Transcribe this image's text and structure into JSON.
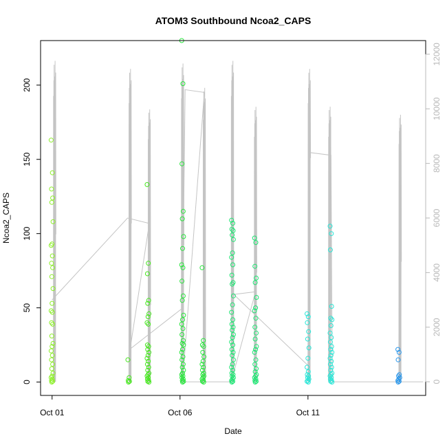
{
  "chart_data": {
    "type": "scatter",
    "title": "ATOM3 Southbound Ncoa2_CAPS",
    "xlabel": "Date",
    "ylabel": "Ncoa2_CAPS",
    "x_ticks": [
      {
        "label": "Oct 01",
        "day": 1
      },
      {
        "label": "Oct 06",
        "day": 6
      },
      {
        "label": "Oct 11",
        "day": 11
      }
    ],
    "x_range_days": [
      0.55,
      15.6
    ],
    "ylim": [
      -9,
      230
    ],
    "y_ticks": [
      0,
      50,
      100,
      150,
      200
    ],
    "y2lim": [
      -500,
      12500
    ],
    "y2_ticks": [
      0,
      2000,
      4000,
      6000,
      8000,
      10000,
      12000
    ],
    "colors": {
      "line": "#c4c4c4",
      "right_axis": "#b8b8b8"
    },
    "clusters": [
      {
        "day": 1.0,
        "color": "#8cf028",
        "values": [
          163,
          141,
          130,
          124,
          121,
          108,
          93,
          92,
          85,
          80,
          77,
          71,
          63,
          53,
          48,
          47,
          40,
          39,
          31,
          26,
          24,
          21,
          18,
          15,
          12,
          9,
          6,
          4,
          3,
          2,
          1,
          0.5,
          0
        ]
      },
      {
        "day": 4.0,
        "color": "#46e61e",
        "values": [
          15,
          3,
          1,
          0.5,
          0
        ]
      },
      {
        "day": 4.75,
        "color": "#46e61e",
        "values": [
          133,
          80,
          73,
          55,
          53,
          46,
          44,
          40,
          39,
          25,
          24,
          22,
          20,
          18,
          16,
          14,
          12,
          10,
          8,
          6,
          5,
          4,
          3,
          2,
          1,
          0.5,
          0
        ]
      },
      {
        "day": 6.1,
        "color": "#28e63c",
        "values": [
          230,
          201,
          147,
          115,
          110,
          98,
          90,
          79,
          77,
          68,
          58,
          55,
          45,
          42,
          39,
          36,
          32,
          28,
          26,
          25,
          22,
          20,
          17,
          15,
          12,
          10,
          8,
          6,
          5,
          4,
          3,
          2,
          1,
          0.5,
          0
        ]
      },
      {
        "day": 6.9,
        "color": "#28e63c",
        "values": [
          77,
          28,
          25,
          24,
          20,
          17,
          14,
          12,
          10,
          8,
          6,
          5,
          4,
          3,
          2,
          1,
          0.5,
          0
        ]
      },
      {
        "day": 8.05,
        "color": "#1ee673",
        "values": [
          109,
          107,
          103,
          102,
          99,
          96,
          87,
          84,
          79,
          72,
          67,
          66,
          58,
          52,
          47,
          42,
          39,
          37,
          35,
          32,
          30,
          27,
          25,
          22,
          20,
          18,
          15,
          12,
          10,
          8,
          6,
          5,
          4,
          3,
          2,
          1,
          0.5,
          0
        ]
      },
      {
        "day": 8.95,
        "color": "#1ee673",
        "values": [
          97,
          94,
          78,
          70,
          67,
          57,
          50,
          48,
          43,
          37,
          33,
          29,
          24,
          22,
          20,
          15,
          12,
          9,
          7,
          5,
          4,
          3,
          2,
          1,
          0.5,
          0
        ]
      },
      {
        "day": 11.0,
        "color": "#28e6d7",
        "values": [
          46,
          44,
          40,
          34,
          29,
          23,
          16,
          10,
          7,
          5,
          4,
          3,
          2,
          1,
          0.5,
          0
        ]
      },
      {
        "day": 11.9,
        "color": "#28e6d7",
        "values": [
          105,
          100,
          89,
          51,
          43,
          42,
          38,
          33,
          30,
          27,
          24,
          22,
          20,
          18,
          16,
          14,
          12,
          10,
          8,
          6,
          5,
          4,
          3,
          2,
          1,
          0.5,
          0
        ]
      },
      {
        "day": 14.55,
        "color": "#2896eb",
        "values": [
          22,
          20,
          15,
          5,
          4,
          3,
          2,
          1,
          0.5,
          0
        ]
      }
    ],
    "line_series": {
      "name": "",
      "axis": "right",
      "bursts": [
        {
          "day": 1.1,
          "max": 11900,
          "base": 5400
        },
        {
          "day": 4.05,
          "max": 11600,
          "base": 5800
        },
        {
          "day": 4.8,
          "max": 10100,
          "base": 2800
        },
        {
          "day": 6.1,
          "max": 11800,
          "base": 5000
        },
        {
          "day": 6.95,
          "max": 10900,
          "base": 200
        },
        {
          "day": 8.05,
          "max": 11900,
          "base": 400
        },
        {
          "day": 8.95,
          "max": 10200,
          "base": 4000
        },
        {
          "day": 11.05,
          "max": 11600,
          "base": 8200
        },
        {
          "day": 11.85,
          "max": 10200,
          "base": 2000
        },
        {
          "day": 14.6,
          "max": 9900,
          "base": 4400
        }
      ],
      "path": [
        [
          1.0,
          3000
        ],
        [
          3.95,
          6000
        ],
        [
          4.8,
          5800
        ],
        [
          4.05,
          1200
        ],
        [
          6.1,
          2700
        ],
        [
          6.2,
          10700
        ],
        [
          6.95,
          10600
        ],
        [
          6.1,
          0
        ],
        [
          8.0,
          0
        ],
        [
          8.95,
          3300
        ],
        [
          8.1,
          3200
        ],
        [
          11.0,
          600
        ],
        [
          11.05,
          8400
        ],
        [
          11.9,
          8300
        ],
        [
          11.95,
          0
        ],
        [
          15.5,
          0
        ]
      ]
    }
  }
}
